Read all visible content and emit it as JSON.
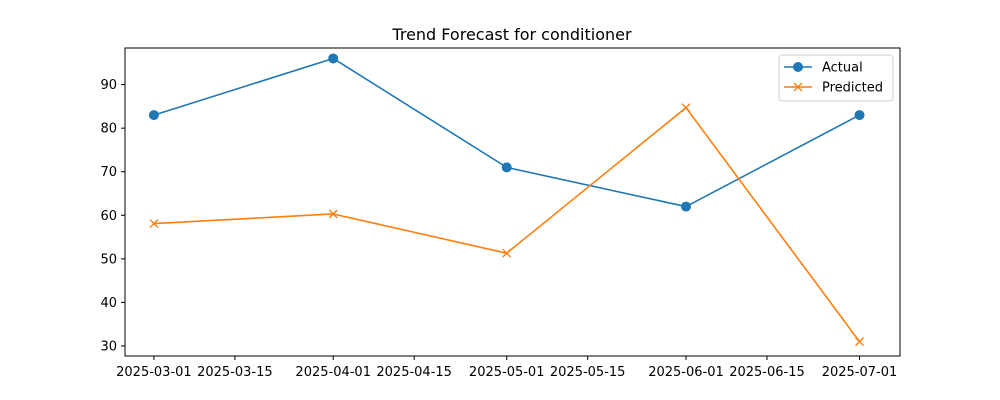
{
  "chart_data": {
    "type": "line",
    "title": "Trend Forecast for conditioner",
    "xlabel": "",
    "ylabel": "",
    "x": [
      "2025-03-01",
      "2025-04-01",
      "2025-05-01",
      "2025-06-01",
      "2025-07-01"
    ],
    "x_ticks": [
      "2025-03-01",
      "2025-03-15",
      "2025-04-01",
      "2025-04-15",
      "2025-05-01",
      "2025-05-15",
      "2025-06-01",
      "2025-06-15",
      "2025-07-01"
    ],
    "y_ticks": [
      30,
      40,
      50,
      60,
      70,
      80,
      90
    ],
    "xlim": [
      "2025-02-24",
      "2025-07-08"
    ],
    "ylim": [
      27.7,
      98.4
    ],
    "grid": false,
    "legend_position": "top-right",
    "series": [
      {
        "name": "Actual",
        "values": [
          83,
          96,
          71,
          62,
          83
        ],
        "color": "#1f77b4",
        "marker": "circle"
      },
      {
        "name": "Predicted",
        "values": [
          58.1,
          60.3,
          51.3,
          84.7,
          31.0
        ],
        "color": "#ff7f0e",
        "marker": "x"
      }
    ]
  }
}
